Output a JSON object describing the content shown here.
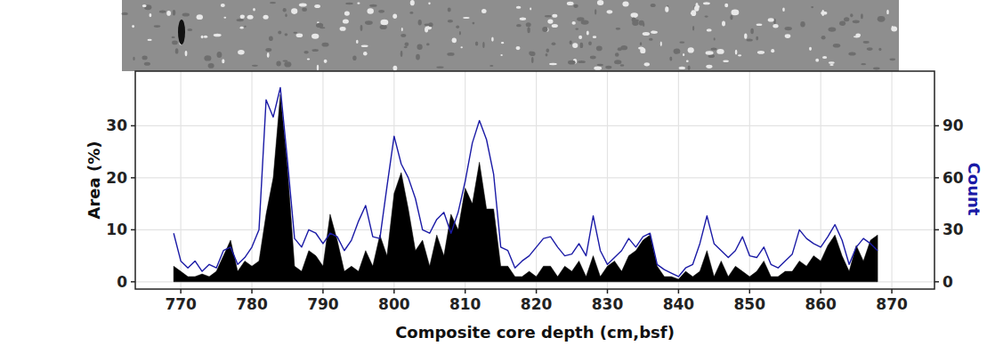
{
  "chart_data": {
    "type": "area",
    "x_label": "Composite core depth (cm,bsf)",
    "y_label": "Area (%)",
    "y2_label": "Count",
    "grid": true,
    "xlim": [
      763.6,
      876
    ],
    "xticks": [
      770,
      780,
      790,
      800,
      810,
      820,
      830,
      840,
      850,
      860,
      870
    ],
    "ylim": [
      -1.4,
      40.5
    ],
    "yticks": [
      0,
      10,
      20,
      30
    ],
    "y2lim": [
      -4.2,
      121.5
    ],
    "y2ticks": [
      0,
      30,
      60,
      90
    ],
    "x": [
      769,
      770,
      771,
      772,
      773,
      774,
      775,
      776,
      777,
      778,
      779,
      780,
      781,
      782,
      783,
      784,
      785,
      786,
      787,
      788,
      789,
      790,
      791,
      792,
      793,
      794,
      795,
      796,
      797,
      798,
      799,
      800,
      801,
      802,
      803,
      804,
      805,
      806,
      807,
      808,
      809,
      810,
      811,
      812,
      813,
      814,
      815,
      816,
      817,
      818,
      819,
      820,
      821,
      822,
      823,
      824,
      825,
      826,
      827,
      828,
      829,
      830,
      831,
      832,
      833,
      834,
      835,
      836,
      837,
      838,
      839,
      840,
      841,
      842,
      843,
      844,
      845,
      846,
      847,
      848,
      849,
      850,
      851,
      852,
      853,
      854,
      855,
      856,
      857,
      858,
      859,
      860,
      861,
      862,
      863,
      864,
      865,
      866,
      867,
      868
    ],
    "series": [
      {
        "name": "Area (%)",
        "type": "area",
        "color": "#000000",
        "values": [
          3,
          2,
          1,
          1,
          1.5,
          1,
          2,
          5,
          8,
          2,
          4,
          3,
          4,
          13,
          20,
          36,
          22,
          3,
          2,
          6,
          5,
          3,
          13,
          8,
          2,
          3,
          2,
          6,
          3,
          9,
          5,
          17,
          21,
          14,
          6,
          8,
          3,
          9,
          5,
          13,
          10,
          18,
          15,
          23,
          14,
          14,
          3,
          3,
          1,
          1,
          2,
          1,
          3,
          3,
          1,
          3,
          2,
          4,
          1,
          5,
          1,
          3,
          4,
          2,
          5,
          6,
          8,
          9,
          3,
          1,
          1,
          0.5,
          2,
          1,
          2,
          6,
          1,
          4,
          1,
          3,
          2,
          1,
          2,
          4,
          1,
          1,
          2,
          2,
          4,
          3,
          5,
          4,
          7,
          9,
          5,
          2,
          7,
          4,
          8,
          9
        ]
      },
      {
        "name": "Count",
        "type": "line",
        "color": "#1a1aa6",
        "axis": "y2",
        "values": [
          28,
          12,
          8,
          12,
          6,
          10,
          8,
          18,
          20,
          10,
          14,
          20,
          30,
          105,
          95,
          112,
          70,
          25,
          20,
          30,
          28,
          22,
          28,
          26,
          18,
          24,
          35,
          44,
          26,
          25,
          55,
          84,
          68,
          60,
          48,
          30,
          28,
          36,
          40,
          28,
          40,
          58,
          80,
          93,
          82,
          62,
          20,
          18,
          8,
          12,
          15,
          20,
          25,
          26,
          20,
          15,
          16,
          22,
          15,
          38,
          18,
          10,
          14,
          18,
          25,
          20,
          26,
          28,
          10,
          7,
          5,
          3,
          8,
          10,
          22,
          38,
          22,
          18,
          14,
          18,
          26,
          15,
          14,
          20,
          10,
          8,
          12,
          16,
          30,
          25,
          22,
          20,
          26,
          33,
          24,
          10,
          20,
          25,
          22,
          18
        ]
      }
    ]
  }
}
